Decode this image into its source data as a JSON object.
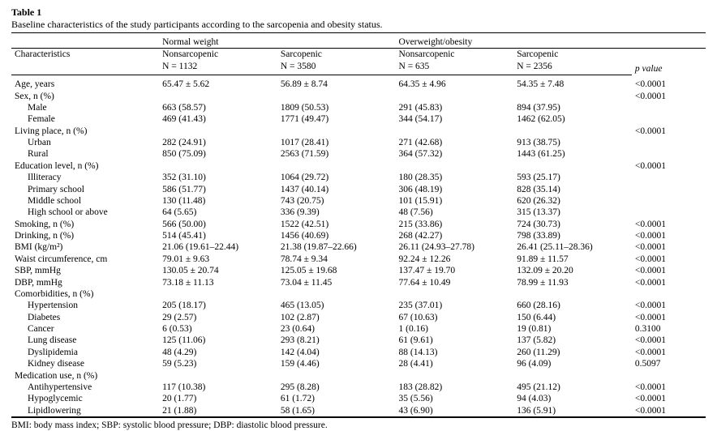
{
  "title": "Table 1",
  "caption": "Baseline characteristics of the study participants according to the sarcopenia and obesity status.",
  "group_headers": [
    "Normal weight",
    "Overweight/obesity"
  ],
  "col_headers": {
    "char": "Characteristics",
    "c1a": "Nonsarcopenic",
    "c1b": "N = 1132",
    "c2a": "Sarcopenic",
    "c2b": "N = 3580",
    "c3a": "Nonsarcopenic",
    "c3b": "N = 635",
    "c4a": "Sarcopenic",
    "c4b": "N = 2356",
    "p": "p value"
  },
  "rows": [
    {
      "t": "r",
      "l": "Age, years",
      "v": [
        "65.47 ± 5.62",
        "56.89 ± 8.74",
        "64.35 ± 4.96",
        "54.35 ± 7.48"
      ],
      "p": "<0.0001"
    },
    {
      "t": "h",
      "l": "Sex, n (%)",
      "p": "<0.0001"
    },
    {
      "t": "s",
      "l": "Male",
      "v": [
        "663 (58.57)",
        "1809 (50.53)",
        "291 (45.83)",
        "894 (37.95)"
      ]
    },
    {
      "t": "s",
      "l": "Female",
      "v": [
        "469 (41.43)",
        "1771 (49.47)",
        "344 (54.17)",
        "1462 (62.05)"
      ]
    },
    {
      "t": "h",
      "l": "Living place, n (%)",
      "p": "<0.0001"
    },
    {
      "t": "s",
      "l": "Urban",
      "v": [
        "282 (24.91)",
        "1017 (28.41)",
        "271 (42.68)",
        "913 (38.75)"
      ]
    },
    {
      "t": "s",
      "l": "Rural",
      "v": [
        "850 (75.09)",
        "2563 (71.59)",
        "364 (57.32)",
        "1443 (61.25)"
      ]
    },
    {
      "t": "h",
      "l": "Education level, n (%)",
      "p": "<0.0001"
    },
    {
      "t": "s",
      "l": "Illiteracy",
      "v": [
        "352 (31.10)",
        "1064 (29.72)",
        "180 (28.35)",
        "593 (25.17)"
      ]
    },
    {
      "t": "s",
      "l": "Primary school",
      "v": [
        "586 (51.77)",
        "1437 (40.14)",
        "306 (48.19)",
        "828 (35.14)"
      ]
    },
    {
      "t": "s",
      "l": "Middle school",
      "v": [
        "130 (11.48)",
        "743 (20.75)",
        "101 (15.91)",
        "620 (26.32)"
      ]
    },
    {
      "t": "s",
      "l": "High school or above",
      "v": [
        "64 (5.65)",
        "336 (9.39)",
        "48 (7.56)",
        "315 (13.37)"
      ]
    },
    {
      "t": "r",
      "l": "Smoking, n (%)",
      "v": [
        "566 (50.00)",
        "1522 (42.51)",
        "215 (33.86)",
        "724 (30.73)"
      ],
      "p": "<0.0001"
    },
    {
      "t": "r",
      "l": "Drinking, n (%)",
      "v": [
        "514 (45.41)",
        "1456 (40.69)",
        "268 (42.27)",
        "798 (33.89)"
      ],
      "p": "<0.0001"
    },
    {
      "t": "r",
      "l": "BMI (kg/m²)",
      "v": [
        "21.06 (19.61–22.44)",
        "21.38 (19.87–22.66)",
        "26.11 (24.93–27.78)",
        "26.41 (25.11–28.36)"
      ],
      "p": "<0.0001"
    },
    {
      "t": "r",
      "l": "Waist circumference, cm",
      "v": [
        "79.01 ± 9.63",
        "78.74 ± 9.34",
        "92.24 ± 12.26",
        "91.89 ± 11.57"
      ],
      "p": "<0.0001"
    },
    {
      "t": "r",
      "l": "SBP, mmHg",
      "v": [
        "130.05 ± 20.74",
        "125.05 ± 19.68",
        "137.47 ± 19.70",
        "132.09 ± 20.20"
      ],
      "p": "<0.0001"
    },
    {
      "t": "r",
      "l": "DBP, mmHg",
      "v": [
        "73.18 ± 11.13",
        "73.04 ± 11.45",
        "77.64 ± 10.49",
        "78.99 ± 11.93"
      ],
      "p": "<0.0001"
    },
    {
      "t": "h",
      "l": "Comorbidities, n (%)"
    },
    {
      "t": "s",
      "l": "Hypertension",
      "v": [
        "205 (18.17)",
        "465 (13.05)",
        "235 (37.01)",
        "660 (28.16)"
      ],
      "p": "<0.0001"
    },
    {
      "t": "s",
      "l": "Diabetes",
      "v": [
        "29 (2.57)",
        "102 (2.87)",
        "67 (10.63)",
        "150 (6.44)"
      ],
      "p": "<0.0001"
    },
    {
      "t": "s",
      "l": "Cancer",
      "v": [
        "6 (0.53)",
        "23 (0.64)",
        "1 (0.16)",
        "19 (0.81)"
      ],
      "p": "0.3100"
    },
    {
      "t": "s",
      "l": "Lung disease",
      "v": [
        "125 (11.06)",
        "293 (8.21)",
        "61 (9.61)",
        "137 (5.82)"
      ],
      "p": "<0.0001"
    },
    {
      "t": "s",
      "l": "Dyslipidemia",
      "v": [
        "48 (4.29)",
        "142 (4.04)",
        "88 (14.13)",
        "260 (11.29)"
      ],
      "p": "<0.0001"
    },
    {
      "t": "s",
      "l": "Kidney disease",
      "v": [
        "59 (5.23)",
        "159 (4.46)",
        "28 (4.41)",
        "96 (4.09)"
      ],
      "p": "0.5097"
    },
    {
      "t": "h",
      "l": "Medication use, n (%)"
    },
    {
      "t": "s",
      "l": "Antihypertensive",
      "v": [
        "117 (10.38)",
        "295 (8.28)",
        "183 (28.82)",
        "495 (21.12)"
      ],
      "p": "<0.0001"
    },
    {
      "t": "s",
      "l": "Hypoglycemic",
      "v": [
        "20 (1.77)",
        "61 (1.72)",
        "35 (5.56)",
        "94 (4.03)"
      ],
      "p": "<0.0001"
    },
    {
      "t": "s",
      "l": "Lipidlowering",
      "v": [
        "21 (1.88)",
        "58 (1.65)",
        "43 (6.90)",
        "136 (5.91)"
      ],
      "p": "<0.0001"
    }
  ],
  "footnote": "BMI: body mass index; SBP: systolic blood pressure; DBP: diastolic blood pressure."
}
